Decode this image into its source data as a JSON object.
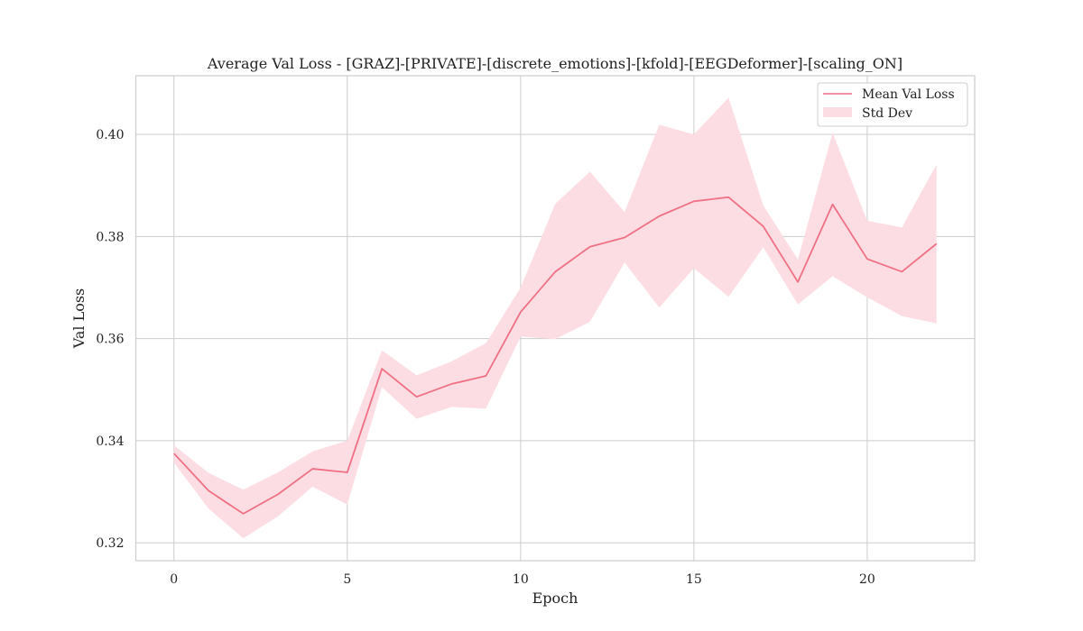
{
  "chart_data": {
    "type": "line",
    "title": "Average Val Loss - [GRAZ]-[PRIVATE]-[discrete_emotions]-[kfold]-[EEGDeformer]-[scaling_ON]",
    "xlabel": "Epoch",
    "ylabel": "Val Loss",
    "xlim": [
      -1.1,
      23.1
    ],
    "ylim": [
      0.3165,
      0.4115
    ],
    "x_ticks": [
      0,
      5,
      10,
      15,
      20
    ],
    "y_ticks": [
      0.32,
      0.34,
      0.36,
      0.38,
      0.4
    ],
    "y_tick_labels": [
      "0.32",
      "0.34",
      "0.36",
      "0.38",
      "0.40"
    ],
    "grid": true,
    "legend_position": "top-right",
    "series": [
      {
        "name": "Mean Val Loss",
        "color": "#f07084",
        "x": [
          0,
          1,
          2,
          3,
          4,
          5,
          6,
          7,
          8,
          9,
          10,
          11,
          12,
          13,
          14,
          15,
          16,
          17,
          18,
          19,
          20,
          21,
          22
        ],
        "values": [
          0.3375,
          0.3302,
          0.3257,
          0.3295,
          0.3345,
          0.3338,
          0.3541,
          0.3486,
          0.3511,
          0.3527,
          0.3652,
          0.3731,
          0.378,
          0.3798,
          0.384,
          0.3869,
          0.3877,
          0.382,
          0.3711,
          0.3863,
          0.3756,
          0.3731,
          0.3786
        ]
      }
    ],
    "bands": [
      {
        "name": "Std Dev",
        "color": "#fcdde3",
        "x": [
          0,
          1,
          2,
          3,
          4,
          5,
          6,
          7,
          8,
          9,
          10,
          11,
          12,
          13,
          14,
          15,
          16,
          17,
          18,
          19,
          20,
          21,
          22
        ],
        "upper": [
          0.3391,
          0.3337,
          0.3304,
          0.3338,
          0.3379,
          0.34,
          0.3577,
          0.3528,
          0.3555,
          0.3591,
          0.37,
          0.3864,
          0.3927,
          0.3848,
          0.4019,
          0.4,
          0.4072,
          0.3861,
          0.3755,
          0.4003,
          0.3831,
          0.3818,
          0.3941
        ],
        "lower": [
          0.3357,
          0.3267,
          0.3209,
          0.3252,
          0.331,
          0.3275,
          0.3505,
          0.3443,
          0.3466,
          0.3463,
          0.3604,
          0.3599,
          0.3633,
          0.3749,
          0.3661,
          0.3738,
          0.3682,
          0.3779,
          0.3667,
          0.3722,
          0.3681,
          0.3644,
          0.363
        ]
      }
    ]
  }
}
